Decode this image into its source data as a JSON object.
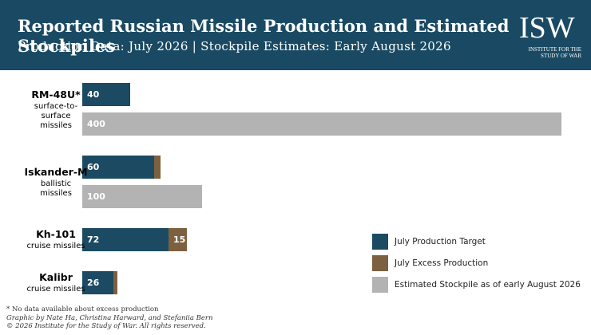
{
  "chart_data": {
    "type": "bar",
    "orientation": "horizontal",
    "title": "Reported Russian Missile Production and Estimated Stockpiles",
    "subtitle": "Production Data: July 2026 | Stockpile Estimates: Early August 2026",
    "logo": {
      "mark": "ISW",
      "text": "INSTITUTE FOR THE STUDY OF WAR"
    },
    "categories": [
      "RM-48U*",
      "Iskander-M",
      "Kh-101",
      "Kalibr"
    ],
    "category_descriptions": [
      "surface-to-surface missiles",
      "ballistic missiles",
      "cruise missiles",
      "cruise missiles"
    ],
    "series": [
      {
        "name": "July Production Target",
        "color": "#1b4a62",
        "values": [
          40,
          60,
          72,
          26
        ],
        "stack": "production"
      },
      {
        "name": "July Excess Production",
        "color": "#7d6040",
        "values": [
          null,
          5,
          15,
          3
        ],
        "stack": "production"
      },
      {
        "name": "Estimated Stockpile as of early August 2026",
        "color": "#b3b3b3",
        "values": [
          400,
          100,
          null,
          null
        ],
        "stack": "stockpile"
      }
    ],
    "legend": "lower right",
    "footnotes": [
      "* No data available about excess production",
      "Graphic by Nate Ha, Christina Harward, and Stefaniia Bern",
      "© 2026 Institute for the Study of War. All rights reserved."
    ]
  }
}
